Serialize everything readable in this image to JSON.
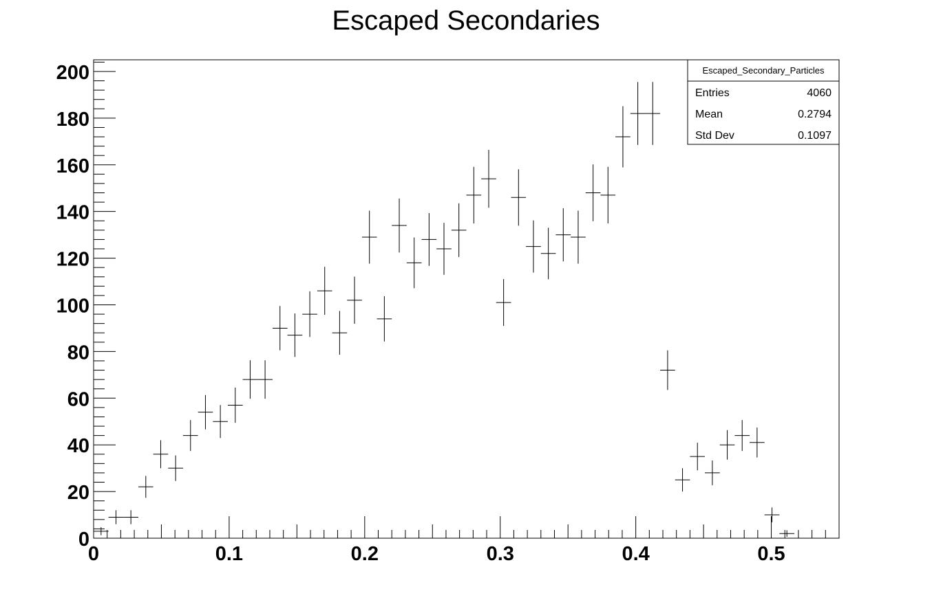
{
  "chart_data": {
    "type": "histogram-errorbars",
    "title": "Escaped Secondaries",
    "xlabel": "",
    "ylabel": "",
    "xlim": [
      0,
      0.55
    ],
    "ylim": [
      0,
      205
    ],
    "bin_width": 0.011,
    "x_ticks": [
      "0",
      "0.1",
      "0.2",
      "0.3",
      "0.4",
      "0.5"
    ],
    "y_ticks": [
      "0",
      "20",
      "40",
      "60",
      "80",
      "100",
      "120",
      "140",
      "160",
      "180",
      "200"
    ],
    "grid": false,
    "series": [
      {
        "x": [
          0.0055,
          0.0165,
          0.0275,
          0.0385,
          0.0495,
          0.0605,
          0.0715,
          0.0825,
          0.0935,
          0.1045,
          0.1155,
          0.1265,
          0.1375,
          0.1485,
          0.1595,
          0.1705,
          0.1815,
          0.1925,
          0.2035,
          0.2145,
          0.2255,
          0.2365,
          0.2475,
          0.2585,
          0.2695,
          0.2805,
          0.2915,
          0.3025,
          0.3135,
          0.3245,
          0.3355,
          0.3465,
          0.3575,
          0.3685,
          0.3795,
          0.3905,
          0.4015,
          0.4125,
          0.4235,
          0.4345,
          0.4455,
          0.4565,
          0.4675,
          0.4785,
          0.4895,
          0.5005,
          0.5115
        ],
        "values": [
          3,
          9,
          9,
          22,
          36,
          30,
          44,
          54,
          50,
          57,
          68,
          68,
          90,
          87,
          96,
          106,
          88,
          102,
          129,
          94,
          134,
          118,
          128,
          124,
          132,
          147,
          154,
          101,
          146,
          125,
          122,
          130,
          129,
          148,
          147,
          172,
          182,
          182,
          72,
          25,
          35,
          28,
          40,
          44,
          41,
          10,
          2
        ]
      }
    ],
    "stats_box": {
      "title": "Escaped_Secondary_Particles",
      "rows": [
        {
          "label": "Entries",
          "value": "4060"
        },
        {
          "label": "Mean",
          "value": "0.2794"
        },
        {
          "label": "Std Dev",
          "value": "0.1097"
        }
      ],
      "placement": "top-right"
    }
  }
}
